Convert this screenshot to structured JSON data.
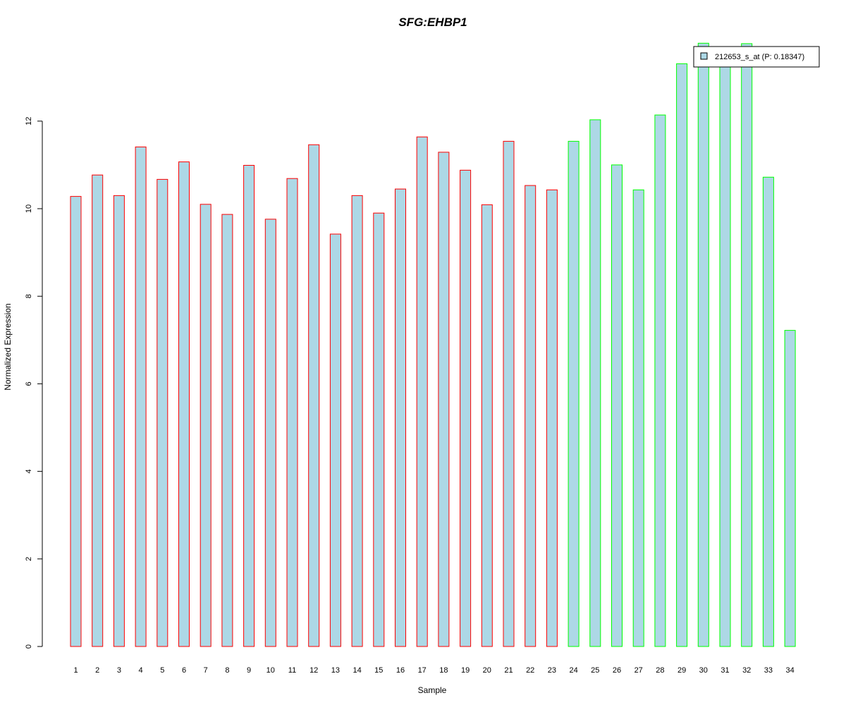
{
  "chart_data": {
    "type": "bar",
    "title": "SFG:EHBP1",
    "xlabel": "Sample",
    "ylabel": "Normalized Expression",
    "ylim": [
      0,
      13.3
    ],
    "yticks": [
      "0",
      "2",
      "4",
      "6",
      "8",
      "10",
      "12"
    ],
    "grid": false,
    "categories": [
      "1",
      "2",
      "3",
      "4",
      "5",
      "6",
      "7",
      "8",
      "9",
      "10",
      "11",
      "12",
      "13",
      "14",
      "15",
      "16",
      "17",
      "18",
      "19",
      "20",
      "21",
      "22",
      "23",
      "24",
      "25",
      "26",
      "27",
      "28",
      "29",
      "30",
      "31",
      "32",
      "33",
      "34"
    ],
    "values": [
      10.28,
      10.77,
      10.3,
      11.41,
      10.67,
      11.07,
      10.1,
      9.87,
      10.99,
      9.76,
      10.69,
      11.46,
      9.42,
      10.3,
      9.9,
      10.45,
      11.64,
      11.29,
      10.88,
      10.09,
      11.54,
      10.53,
      10.43,
      11.54,
      12.03,
      11.0,
      10.43,
      12.14,
      13.31,
      13.78,
      13.31,
      13.77,
      10.72,
      7.22
    ],
    "groups": [
      "red",
      "red",
      "red",
      "red",
      "red",
      "red",
      "red",
      "red",
      "red",
      "red",
      "red",
      "red",
      "red",
      "red",
      "red",
      "red",
      "red",
      "red",
      "red",
      "red",
      "red",
      "red",
      "red",
      "green",
      "green",
      "green",
      "green",
      "green",
      "green",
      "green",
      "green",
      "green",
      "green",
      "green"
    ],
    "legend": {
      "label": "212653_s_at (P: 0.18347)",
      "placement": "top-right"
    },
    "colors": {
      "bar_fill": "#add8e6",
      "red_border": "#ff0000",
      "green_border": "#00ff00",
      "title": "#0000cd"
    }
  }
}
